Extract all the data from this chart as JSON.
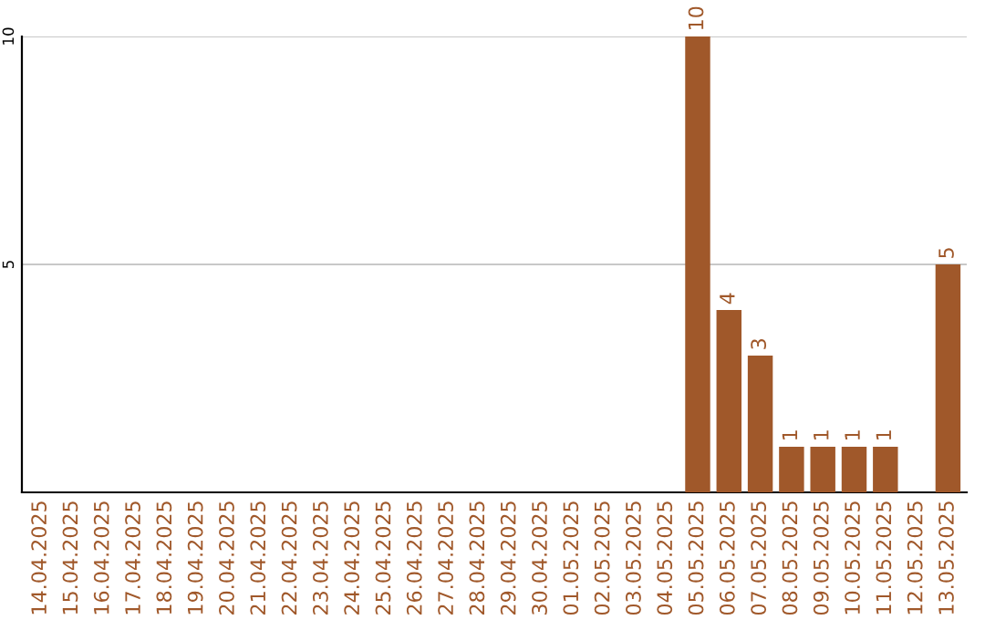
{
  "chart_data": {
    "type": "bar",
    "categories": [
      "14.04.2025",
      "15.04.2025",
      "16.04.2025",
      "17.04.2025",
      "18.04.2025",
      "19.04.2025",
      "20.04.2025",
      "21.04.2025",
      "22.04.2025",
      "23.04.2025",
      "24.04.2025",
      "25.04.2025",
      "26.04.2025",
      "27.04.2025",
      "28.04.2025",
      "29.04.2025",
      "30.04.2025",
      "01.05.2025",
      "02.05.2025",
      "03.05.2025",
      "04.05.2025",
      "05.05.2025",
      "06.05.2025",
      "07.05.2025",
      "08.05.2025",
      "09.05.2025",
      "10.05.2025",
      "11.05.2025",
      "12.05.2025",
      "13.05.2025"
    ],
    "values": [
      0,
      0,
      0,
      0,
      0,
      0,
      0,
      0,
      0,
      0,
      0,
      0,
      0,
      0,
      0,
      0,
      0,
      0,
      0,
      0,
      0,
      10,
      4,
      3,
      1,
      1,
      1,
      1,
      0,
      5
    ],
    "value_labels": [
      null,
      null,
      null,
      null,
      null,
      null,
      null,
      null,
      null,
      null,
      null,
      null,
      null,
      null,
      null,
      null,
      null,
      null,
      null,
      null,
      null,
      "10",
      "4",
      "3",
      "1",
      "1",
      "1",
      "1",
      null,
      "5"
    ],
    "color": "#a0582a",
    "ylim": [
      0,
      10
    ],
    "yticks": [
      5,
      10
    ],
    "grid": "y"
  }
}
